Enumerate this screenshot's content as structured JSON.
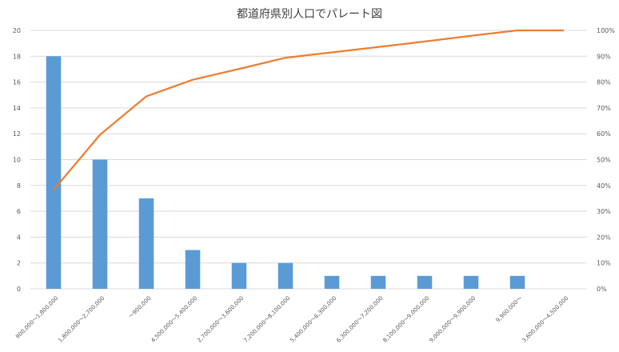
{
  "chart_data": {
    "type": "bar",
    "title": "都道府県別人口でパレート図",
    "categories": [
      "900,000～1,800,000",
      "1,800,000～2,700,000",
      "～900,000",
      "4,500,000～5,400,000",
      "2,700,000～3,600,000",
      "7,200,000～8,100,000",
      "5,400,000～6,300,000",
      "6,300,000～7,200,000",
      "8,100,000～9,000,000",
      "9,000,000～9,900,000",
      "9,900,000～",
      "3,600,000～4,500,000"
    ],
    "series": [
      {
        "type": "bar",
        "values": [
          18,
          10,
          7,
          3,
          2,
          2,
          1,
          1,
          1,
          1,
          1,
          0
        ],
        "color": "#5b9bd5",
        "axis": "left"
      },
      {
        "type": "line",
        "values": [
          38.3,
          59.6,
          74.5,
          80.9,
          85.1,
          89.4,
          91.5,
          93.6,
          95.7,
          97.9,
          100,
          100
        ],
        "color": "#ed7d31",
        "axis": "right"
      }
    ],
    "y_left": {
      "min": 0,
      "max": 20,
      "ticks": [
        "0",
        "2",
        "4",
        "6",
        "8",
        "10",
        "12",
        "14",
        "16",
        "18",
        "20"
      ]
    },
    "y_right": {
      "min": 0,
      "max": 100,
      "ticks": [
        "0%",
        "10%",
        "20%",
        "30%",
        "40%",
        "50%",
        "60%",
        "70%",
        "80%",
        "90%",
        "100%"
      ]
    },
    "grid": true,
    "legend": "none"
  }
}
